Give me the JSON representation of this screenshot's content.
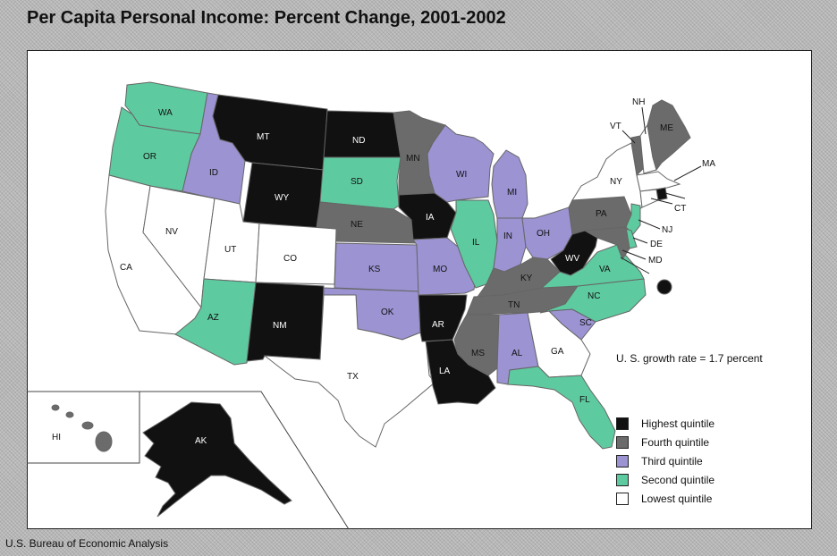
{
  "title": "Per Capita Personal Income: Percent Change, 2001-2002",
  "source": "U.S. Bureau of Economic Analysis",
  "legend": {
    "title": "U. S. growth rate = 1.7 percent",
    "items": [
      {
        "label": "Highest quintile",
        "color": "#111111"
      },
      {
        "label": "Fourth quintile",
        "color": "#6b6b6b"
      },
      {
        "label": "Third quintile",
        "color": "#9b93d2"
      },
      {
        "label": "Second quintile",
        "color": "#5ecaa0"
      },
      {
        "label": "Lowest quintile",
        "color": "#ffffff"
      }
    ]
  },
  "states": [
    {
      "code": "WA",
      "quintile": 2
    },
    {
      "code": "OR",
      "quintile": 2
    },
    {
      "code": "CA",
      "quintile": 1
    },
    {
      "code": "NV",
      "quintile": 1
    },
    {
      "code": "ID",
      "quintile": 3
    },
    {
      "code": "MT",
      "quintile": 5
    },
    {
      "code": "WY",
      "quintile": 5
    },
    {
      "code": "UT",
      "quintile": 1
    },
    {
      "code": "AZ",
      "quintile": 2
    },
    {
      "code": "CO",
      "quintile": 1
    },
    {
      "code": "NM",
      "quintile": 5
    },
    {
      "code": "ND",
      "quintile": 5
    },
    {
      "code": "SD",
      "quintile": 2
    },
    {
      "code": "NE",
      "quintile": 4
    },
    {
      "code": "KS",
      "quintile": 3
    },
    {
      "code": "OK",
      "quintile": 3
    },
    {
      "code": "TX",
      "quintile": 1
    },
    {
      "code": "MN",
      "quintile": 4
    },
    {
      "code": "IA",
      "quintile": 5
    },
    {
      "code": "MO",
      "quintile": 3
    },
    {
      "code": "AR",
      "quintile": 5
    },
    {
      "code": "LA",
      "quintile": 5
    },
    {
      "code": "WI",
      "quintile": 3
    },
    {
      "code": "IL",
      "quintile": 2
    },
    {
      "code": "MI",
      "quintile": 3
    },
    {
      "code": "IN",
      "quintile": 3
    },
    {
      "code": "OH",
      "quintile": 3
    },
    {
      "code": "KY",
      "quintile": 4
    },
    {
      "code": "TN",
      "quintile": 4
    },
    {
      "code": "MS",
      "quintile": 4
    },
    {
      "code": "AL",
      "quintile": 3
    },
    {
      "code": "GA",
      "quintile": 1
    },
    {
      "code": "FL",
      "quintile": 2
    },
    {
      "code": "SC",
      "quintile": 3
    },
    {
      "code": "NC",
      "quintile": 2
    },
    {
      "code": "VA",
      "quintile": 2
    },
    {
      "code": "WV",
      "quintile": 5
    },
    {
      "code": "PA",
      "quintile": 4
    },
    {
      "code": "NY",
      "quintile": 1
    },
    {
      "code": "VT",
      "quintile": 4
    },
    {
      "code": "NH",
      "quintile": 1
    },
    {
      "code": "ME",
      "quintile": 4
    },
    {
      "code": "MA",
      "quintile": 1
    },
    {
      "code": "RI",
      "quintile": 5
    },
    {
      "code": "CT",
      "quintile": 1
    },
    {
      "code": "NJ",
      "quintile": 2
    },
    {
      "code": "DE",
      "quintile": 2
    },
    {
      "code": "MD",
      "quintile": 4
    },
    {
      "code": "DC",
      "quintile": 5
    },
    {
      "code": "AK",
      "quintile": 5
    },
    {
      "code": "HI",
      "quintile": 4
    }
  ]
}
